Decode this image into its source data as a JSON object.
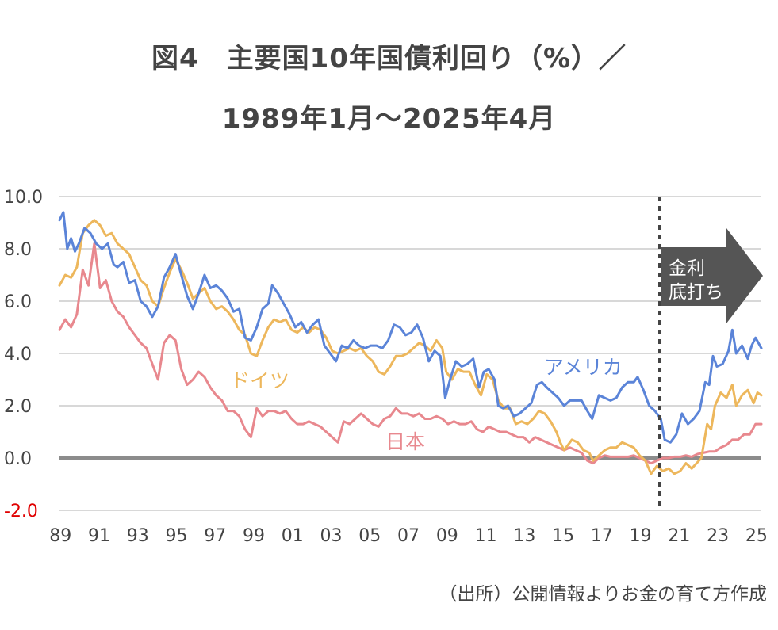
{
  "title_line1": "図4　主要国10年国債利回り（%）／",
  "title_line2": "1989年1月〜2025年4月",
  "source": "（出所）公開情報よりお金の育て方作成",
  "colors": {
    "us": "#5B84D8",
    "germany": "#EDB75C",
    "japan": "#E8888E",
    "grid": "#CCCCCC",
    "zero": "#8C8C8C",
    "negative_tick": "#E00000",
    "arrow": "#555555"
  },
  "chart_data": {
    "type": "line",
    "title": "主要国10年国債利回り（%）／1989年1月〜2025年4月",
    "xlabel": "",
    "ylabel": "",
    "ylim": [
      -2,
      10
    ],
    "yticks": [
      "10.0",
      "8.0",
      "6.0",
      "4.0",
      "2.0",
      "0.0",
      "-2.0"
    ],
    "xticks": [
      "89",
      "91",
      "93",
      "95",
      "97",
      "99",
      "01",
      "03",
      "05",
      "07",
      "09",
      "11",
      "13",
      "15",
      "17",
      "19",
      "21",
      "23",
      "25"
    ],
    "xtick_years": [
      1989,
      1991,
      1993,
      1995,
      1997,
      1999,
      2001,
      2003,
      2005,
      2007,
      2009,
      2011,
      2013,
      2015,
      2017,
      2019,
      2021,
      2023,
      2025
    ],
    "xlim": [
      1989.0,
      2025.3
    ],
    "marker_line_year": 2020.05,
    "annotation": {
      "line1": "金利",
      "line2": "底打ち"
    },
    "series": [
      {
        "name": "アメリカ",
        "label": "アメリカ",
        "key": "us",
        "x": [
          1989.0,
          1989.2,
          1989.4,
          1989.6,
          1989.8,
          1990.0,
          1990.3,
          1990.6,
          1990.9,
          1991.2,
          1991.5,
          1991.8,
          1992.0,
          1992.3,
          1992.6,
          1992.9,
          1993.2,
          1993.5,
          1993.8,
          1994.1,
          1994.4,
          1994.7,
          1995.0,
          1995.3,
          1995.6,
          1995.9,
          1996.2,
          1996.5,
          1996.8,
          1997.1,
          1997.4,
          1997.7,
          1998.0,
          1998.3,
          1998.6,
          1998.9,
          1999.2,
          1999.5,
          1999.8,
          2000.0,
          2000.3,
          2000.6,
          2000.9,
          2001.2,
          2001.5,
          2001.8,
          2002.1,
          2002.4,
          2002.7,
          2003.0,
          2003.3,
          2003.6,
          2003.9,
          2004.2,
          2004.5,
          2004.8,
          2005.1,
          2005.4,
          2005.7,
          2006.0,
          2006.3,
          2006.6,
          2006.9,
          2007.2,
          2007.5,
          2007.8,
          2008.1,
          2008.4,
          2008.7,
          2008.95,
          2009.2,
          2009.5,
          2009.8,
          2010.1,
          2010.4,
          2010.7,
          2010.95,
          2011.2,
          2011.5,
          2011.7,
          2011.95,
          2012.2,
          2012.5,
          2012.8,
          2013.1,
          2013.4,
          2013.7,
          2013.95,
          2014.2,
          2014.5,
          2014.8,
          2015.1,
          2015.4,
          2015.7,
          2016.0,
          2016.3,
          2016.55,
          2016.9,
          2017.2,
          2017.5,
          2017.8,
          2018.1,
          2018.4,
          2018.7,
          2018.9,
          2019.2,
          2019.5,
          2019.8,
          2020.1,
          2020.3,
          2020.6,
          2020.9,
          2021.2,
          2021.5,
          2021.8,
          2022.1,
          2022.4,
          2022.6,
          2022.8,
          2023.0,
          2023.3,
          2023.6,
          2023.8,
          2024.0,
          2024.3,
          2024.6,
          2024.8,
          2025.0,
          2025.3
        ],
        "values": [
          9.1,
          9.4,
          8.0,
          8.4,
          7.9,
          8.2,
          8.8,
          8.6,
          8.2,
          8.0,
          8.2,
          7.4,
          7.3,
          7.5,
          6.7,
          6.8,
          6.0,
          5.8,
          5.4,
          5.8,
          6.9,
          7.3,
          7.8,
          7.0,
          6.2,
          5.7,
          6.3,
          7.0,
          6.5,
          6.6,
          6.4,
          6.1,
          5.6,
          5.7,
          4.6,
          4.5,
          5.0,
          5.7,
          5.9,
          6.6,
          6.3,
          5.9,
          5.5,
          5.0,
          5.2,
          4.8,
          5.1,
          5.3,
          4.3,
          4.0,
          3.7,
          4.3,
          4.2,
          4.5,
          4.3,
          4.2,
          4.3,
          4.3,
          4.2,
          4.5,
          5.1,
          5.0,
          4.7,
          4.8,
          5.1,
          4.6,
          3.7,
          4.1,
          3.9,
          2.3,
          3.0,
          3.7,
          3.5,
          3.6,
          3.8,
          2.7,
          3.3,
          3.4,
          3.0,
          2.0,
          1.9,
          2.0,
          1.6,
          1.7,
          1.9,
          2.1,
          2.8,
          2.9,
          2.7,
          2.5,
          2.3,
          2.0,
          2.2,
          2.2,
          2.2,
          1.8,
          1.5,
          2.4,
          2.3,
          2.2,
          2.3,
          2.7,
          2.9,
          2.9,
          3.1,
          2.6,
          2.0,
          1.8,
          1.5,
          0.7,
          0.6,
          0.9,
          1.7,
          1.3,
          1.5,
          1.8,
          2.9,
          2.8,
          3.9,
          3.5,
          3.6,
          4.1,
          4.9,
          4.0,
          4.3,
          3.8,
          4.3,
          4.6,
          4.2
        ]
      },
      {
        "name": "ドイツ",
        "label": "ドイツ",
        "key": "germany",
        "x": [
          1989.0,
          1989.3,
          1989.6,
          1989.9,
          1990.2,
          1990.5,
          1990.8,
          1991.1,
          1991.4,
          1991.7,
          1992.0,
          1992.3,
          1992.6,
          1992.9,
          1993.2,
          1993.5,
          1993.8,
          1994.1,
          1994.4,
          1994.7,
          1995.0,
          1995.3,
          1995.6,
          1995.9,
          1996.2,
          1996.5,
          1996.8,
          1997.1,
          1997.4,
          1997.7,
          1998.0,
          1998.3,
          1998.6,
          1998.9,
          1999.2,
          1999.5,
          1999.8,
          2000.1,
          2000.4,
          2000.7,
          2001.0,
          2001.3,
          2001.6,
          2001.9,
          2002.2,
          2002.5,
          2002.8,
          2003.1,
          2003.4,
          2003.7,
          2004.0,
          2004.3,
          2004.6,
          2004.9,
          2005.2,
          2005.5,
          2005.8,
          2006.1,
          2006.4,
          2006.7,
          2007.0,
          2007.3,
          2007.6,
          2007.9,
          2008.2,
          2008.5,
          2008.8,
          2009.0,
          2009.3,
          2009.6,
          2009.9,
          2010.2,
          2010.5,
          2010.8,
          2011.1,
          2011.4,
          2011.7,
          2012.0,
          2012.3,
          2012.6,
          2012.9,
          2013.2,
          2013.5,
          2013.8,
          2014.1,
          2014.4,
          2014.7,
          2014.9,
          2015.1,
          2015.3,
          2015.5,
          2015.8,
          2016.1,
          2016.4,
          2016.6,
          2016.9,
          2017.2,
          2017.5,
          2017.8,
          2018.1,
          2018.4,
          2018.7,
          2019.0,
          2019.3,
          2019.6,
          2019.9,
          2020.2,
          2020.5,
          2020.8,
          2021.1,
          2021.4,
          2021.7,
          2021.95,
          2022.2,
          2022.5,
          2022.7,
          2022.9,
          2023.2,
          2023.5,
          2023.8,
          2024.0,
          2024.3,
          2024.6,
          2024.9,
          2025.1,
          2025.3
        ],
        "values": [
          6.6,
          7.0,
          6.9,
          7.3,
          8.6,
          8.9,
          9.1,
          8.9,
          8.5,
          8.6,
          8.2,
          8.0,
          7.8,
          7.3,
          6.8,
          6.6,
          6.0,
          5.8,
          6.5,
          7.1,
          7.6,
          7.2,
          6.7,
          6.1,
          6.3,
          6.5,
          6.0,
          5.7,
          5.8,
          5.6,
          5.3,
          4.9,
          4.7,
          4.0,
          3.9,
          4.5,
          5.0,
          5.3,
          5.2,
          5.3,
          4.9,
          4.8,
          5.0,
          4.8,
          5.0,
          4.9,
          4.6,
          4.1,
          4.0,
          4.1,
          4.2,
          4.1,
          4.2,
          3.9,
          3.7,
          3.3,
          3.2,
          3.5,
          3.9,
          3.9,
          4.0,
          4.2,
          4.4,
          4.3,
          4.1,
          4.5,
          4.2,
          3.3,
          3.0,
          3.4,
          3.3,
          3.3,
          2.8,
          2.4,
          3.2,
          3.0,
          2.2,
          1.9,
          1.9,
          1.3,
          1.4,
          1.3,
          1.5,
          1.8,
          1.7,
          1.4,
          1.0,
          0.6,
          0.3,
          0.5,
          0.7,
          0.6,
          0.3,
          0.2,
          -0.1,
          0.1,
          0.3,
          0.4,
          0.4,
          0.6,
          0.5,
          0.4,
          0.1,
          -0.1,
          -0.6,
          -0.3,
          -0.5,
          -0.4,
          -0.6,
          -0.5,
          -0.2,
          -0.4,
          -0.2,
          0.0,
          1.3,
          1.1,
          2.0,
          2.5,
          2.3,
          2.8,
          2.0,
          2.4,
          2.6,
          2.1,
          2.5,
          2.4
        ]
      },
      {
        "name": "日本",
        "label": "日本",
        "key": "japan",
        "x": [
          1989.0,
          1989.3,
          1989.6,
          1989.9,
          1990.2,
          1990.5,
          1990.8,
          1991.1,
          1991.4,
          1991.7,
          1992.0,
          1992.3,
          1992.6,
          1992.9,
          1993.2,
          1993.5,
          1993.8,
          1994.1,
          1994.4,
          1994.7,
          1995.0,
          1995.3,
          1995.6,
          1995.9,
          1996.2,
          1996.5,
          1996.8,
          1997.1,
          1997.4,
          1997.7,
          1998.0,
          1998.3,
          1998.6,
          1998.9,
          1999.2,
          1999.5,
          1999.8,
          2000.1,
          2000.4,
          2000.7,
          2001.0,
          2001.3,
          2001.6,
          2001.9,
          2002.2,
          2002.5,
          2002.8,
          2003.1,
          2003.4,
          2003.7,
          2004.0,
          2004.3,
          2004.6,
          2004.9,
          2005.2,
          2005.5,
          2005.8,
          2006.1,
          2006.4,
          2006.7,
          2007.0,
          2007.3,
          2007.6,
          2007.9,
          2008.2,
          2008.5,
          2008.8,
          2009.1,
          2009.4,
          2009.7,
          2010.0,
          2010.3,
          2010.6,
          2010.9,
          2011.2,
          2011.5,
          2011.8,
          2012.1,
          2012.4,
          2012.7,
          2013.0,
          2013.3,
          2013.6,
          2013.9,
          2014.2,
          2014.5,
          2014.8,
          2015.1,
          2015.4,
          2015.7,
          2016.0,
          2016.3,
          2016.6,
          2016.9,
          2017.2,
          2017.5,
          2017.8,
          2018.1,
          2018.4,
          2018.7,
          2019.0,
          2019.3,
          2019.6,
          2019.9,
          2020.2,
          2020.5,
          2020.8,
          2021.1,
          2021.4,
          2021.7,
          2022.0,
          2022.3,
          2022.6,
          2022.9,
          2023.2,
          2023.5,
          2023.8,
          2024.1,
          2024.4,
          2024.7,
          2025.0,
          2025.3
        ],
        "values": [
          4.9,
          5.3,
          5.0,
          5.5,
          7.2,
          6.6,
          8.2,
          6.5,
          6.8,
          6.0,
          5.6,
          5.4,
          5.0,
          4.7,
          4.4,
          4.2,
          3.6,
          3.0,
          4.4,
          4.7,
          4.5,
          3.4,
          2.8,
          3.0,
          3.3,
          3.1,
          2.7,
          2.4,
          2.2,
          1.8,
          1.8,
          1.6,
          1.1,
          0.8,
          1.9,
          1.6,
          1.8,
          1.8,
          1.7,
          1.8,
          1.5,
          1.3,
          1.3,
          1.4,
          1.3,
          1.2,
          1.0,
          0.8,
          0.6,
          1.4,
          1.3,
          1.5,
          1.7,
          1.5,
          1.3,
          1.2,
          1.5,
          1.6,
          1.9,
          1.7,
          1.7,
          1.6,
          1.7,
          1.5,
          1.5,
          1.6,
          1.5,
          1.3,
          1.4,
          1.3,
          1.3,
          1.4,
          1.1,
          1.0,
          1.2,
          1.1,
          1.0,
          1.0,
          0.9,
          0.8,
          0.8,
          0.6,
          0.8,
          0.7,
          0.6,
          0.5,
          0.4,
          0.3,
          0.4,
          0.3,
          0.2,
          -0.1,
          -0.2,
          0.0,
          0.1,
          0.05,
          0.05,
          0.05,
          0.05,
          0.1,
          0.0,
          -0.1,
          -0.2,
          -0.1,
          0.0,
          0.0,
          0.05,
          0.05,
          0.1,
          0.05,
          0.15,
          0.2,
          0.25,
          0.25,
          0.4,
          0.5,
          0.7,
          0.7,
          0.9,
          0.9,
          1.3,
          1.3
        ]
      }
    ]
  }
}
